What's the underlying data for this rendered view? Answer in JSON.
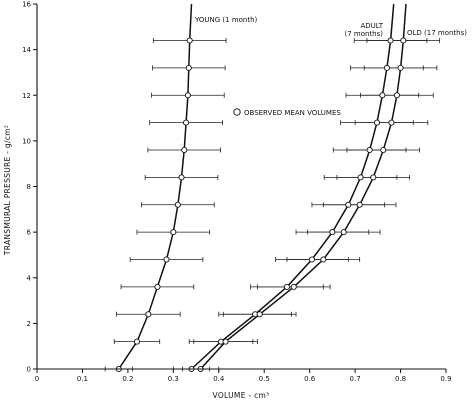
{
  "chart_data": {
    "type": "line",
    "xlabel": "VOLUME - cm³",
    "ylabel": "TRANSMURAL PRESSURE - g/cm²",
    "xlim": [
      0,
      0.9
    ],
    "ylim": [
      0,
      16
    ],
    "xticks": [
      "0",
      "0.1",
      "0.2",
      "0.3",
      "0.4",
      "0.5",
      "0.6",
      "0.7",
      "0.8",
      "0.9"
    ],
    "yticks": [
      "0",
      "2",
      "4",
      "6",
      "8",
      "10",
      "12",
      "14",
      "16"
    ],
    "legend": "OBSERVED MEAN VOLUMES",
    "series": [
      {
        "name": "YOUNG (1 month)",
        "label_lines": [
          "YOUNG (1 month)"
        ],
        "points": [
          {
            "y": 0,
            "x": 0.18
          },
          {
            "y": 1.2,
            "x": 0.22
          },
          {
            "y": 2.4,
            "x": 0.245
          },
          {
            "y": 3.6,
            "x": 0.265
          },
          {
            "y": 4.8,
            "x": 0.285
          },
          {
            "y": 6.0,
            "x": 0.3
          },
          {
            "y": 7.2,
            "x": 0.31
          },
          {
            "y": 8.4,
            "x": 0.318
          },
          {
            "y": 9.6,
            "x": 0.324
          },
          {
            "y": 10.8,
            "x": 0.328
          },
          {
            "y": 12.0,
            "x": 0.332
          },
          {
            "y": 13.2,
            "x": 0.334
          },
          {
            "y": 14.4,
            "x": 0.336
          }
        ],
        "err": [
          0.03,
          0.05,
          0.07,
          0.08,
          0.08,
          0.08,
          0.08,
          0.08,
          0.08,
          0.08,
          0.08,
          0.08,
          0.08
        ],
        "curve_end": [
          0.34,
          16
        ]
      },
      {
        "name": "ADULT (7 months)",
        "label_lines": [
          "ADULT",
          "(7 months)"
        ],
        "points": [
          {
            "y": 0,
            "x": 0.34
          },
          {
            "y": 1.2,
            "x": 0.405
          },
          {
            "y": 2.4,
            "x": 0.48
          },
          {
            "y": 3.6,
            "x": 0.55
          },
          {
            "y": 4.8,
            "x": 0.605
          },
          {
            "y": 6.0,
            "x": 0.65
          },
          {
            "y": 7.2,
            "x": 0.685
          },
          {
            "y": 8.4,
            "x": 0.712
          },
          {
            "y": 9.6,
            "x": 0.732
          },
          {
            "y": 10.8,
            "x": 0.748
          },
          {
            "y": 12.0,
            "x": 0.76
          },
          {
            "y": 13.2,
            "x": 0.77
          },
          {
            "y": 14.4,
            "x": 0.778
          }
        ],
        "err": [
          0.04,
          0.07,
          0.08,
          0.08,
          0.08,
          0.08,
          0.08,
          0.08,
          0.08,
          0.08,
          0.08,
          0.08,
          0.08
        ],
        "curve_end": [
          0.785,
          16
        ]
      },
      {
        "name": "OLD (17 months)",
        "label_lines": [
          "OLD (17 months)"
        ],
        "points": [
          {
            "y": 0,
            "x": 0.36
          },
          {
            "y": 1.2,
            "x": 0.415
          },
          {
            "y": 2.4,
            "x": 0.49
          },
          {
            "y": 3.6,
            "x": 0.565
          },
          {
            "y": 4.8,
            "x": 0.63
          },
          {
            "y": 6.0,
            "x": 0.675
          },
          {
            "y": 7.2,
            "x": 0.71
          },
          {
            "y": 8.4,
            "x": 0.74
          },
          {
            "y": 9.6,
            "x": 0.762
          },
          {
            "y": 10.8,
            "x": 0.78
          },
          {
            "y": 12.0,
            "x": 0.792
          },
          {
            "y": 13.2,
            "x": 0.8
          },
          {
            "y": 14.4,
            "x": 0.806
          }
        ],
        "err": [
          0.04,
          0.07,
          0.08,
          0.08,
          0.08,
          0.08,
          0.08,
          0.08,
          0.08,
          0.08,
          0.08,
          0.08,
          0.08
        ],
        "curve_end": [
          0.812,
          16
        ]
      }
    ]
  }
}
